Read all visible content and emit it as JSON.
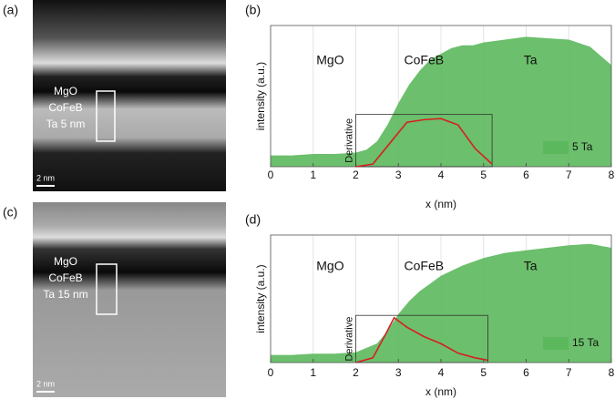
{
  "images": [
    {
      "panel": "(a)",
      "layers": [
        "MgO",
        "CoFeB",
        "Ta 5 nm"
      ],
      "scale_bar": "2 nm"
    },
    {
      "panel": "(c)",
      "layers": [
        "MgO",
        "CoFeB",
        "Ta 15 nm"
      ],
      "scale_bar": "2 nm"
    }
  ],
  "chart_data": [
    {
      "type": "area",
      "panel": "(b)",
      "x_label": "x (nm)",
      "y_label": "intensity (a.u.)",
      "annotations": [
        "MgO",
        "CoFeB",
        "Ta"
      ],
      "xlim": [
        0,
        8
      ],
      "xticks": [
        0,
        1,
        2,
        3,
        4,
        5,
        6,
        7,
        8
      ],
      "ylim": [
        0,
        1
      ],
      "y2lim": [
        0,
        1
      ],
      "grid": true,
      "legend": "lower right",
      "series": [
        {
          "name": "5 Ta",
          "color": "#5cb85c",
          "x": [
            0,
            0.5,
            1,
            1.5,
            2,
            2.25,
            2.5,
            2.75,
            3,
            3.25,
            3.5,
            3.75,
            4,
            4.25,
            4.5,
            4.75,
            5,
            5.5,
            6,
            6.5,
            7,
            7.5,
            8
          ],
          "values": [
            0.08,
            0.08,
            0.09,
            0.09,
            0.1,
            0.12,
            0.18,
            0.3,
            0.45,
            0.58,
            0.68,
            0.76,
            0.8,
            0.84,
            0.86,
            0.86,
            0.88,
            0.9,
            0.92,
            0.91,
            0.9,
            0.85,
            0.72
          ]
        },
        {
          "name": "Derivative",
          "color": "#d62020",
          "axis": "y2",
          "x": [
            2,
            2.4,
            2.8,
            3.2,
            3.6,
            4,
            4.4,
            4.8,
            5.2
          ],
          "values": [
            0,
            0.05,
            0.45,
            0.85,
            0.9,
            0.92,
            0.8,
            0.35,
            0.05
          ]
        }
      ]
    },
    {
      "type": "area",
      "panel": "(d)",
      "x_label": "x (nm)",
      "y_label": "intensity (a.u.)",
      "annotations": [
        "MgO",
        "CoFeB",
        "Ta"
      ],
      "xlim": [
        0,
        8
      ],
      "xticks": [
        0,
        1,
        2,
        3,
        4,
        5,
        6,
        7,
        8
      ],
      "ylim": [
        0,
        1
      ],
      "y2lim": [
        0,
        1
      ],
      "grid": true,
      "legend": "lower right",
      "series": [
        {
          "name": "15 Ta",
          "color": "#5cb85c",
          "x": [
            0,
            0.5,
            1,
            1.5,
            2,
            2.5,
            2.75,
            3,
            3.25,
            3.5,
            3.75,
            4,
            4.5,
            5,
            5.5,
            6,
            6.5,
            7,
            7.5,
            8
          ],
          "values": [
            0.06,
            0.06,
            0.07,
            0.07,
            0.08,
            0.15,
            0.25,
            0.38,
            0.48,
            0.56,
            0.62,
            0.68,
            0.76,
            0.82,
            0.86,
            0.88,
            0.9,
            0.92,
            0.93,
            0.9
          ]
        },
        {
          "name": "Derivative",
          "color": "#d62020",
          "axis": "y2",
          "x": [
            2,
            2.4,
            2.7,
            2.9,
            3.2,
            3.6,
            4,
            4.4,
            4.8,
            5.1
          ],
          "values": [
            0,
            0.1,
            0.6,
            0.95,
            0.75,
            0.55,
            0.4,
            0.2,
            0.1,
            0.05
          ]
        }
      ]
    }
  ]
}
